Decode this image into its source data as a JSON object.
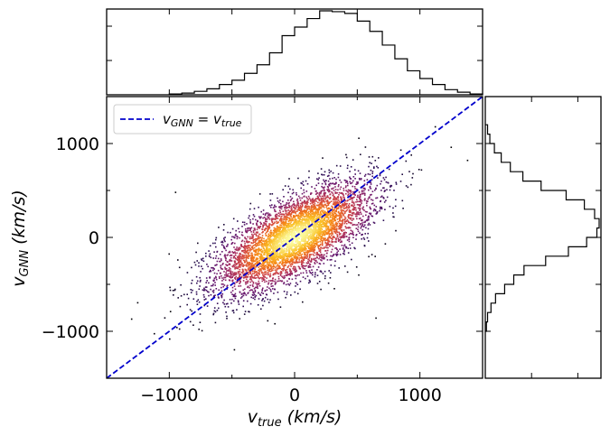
{
  "chart_data": {
    "type": "scatter",
    "x_range": [
      -1500,
      1500
    ],
    "y_range": [
      -1500,
      1500
    ],
    "x_ticks": [
      -1000,
      0,
      1000
    ],
    "y_ticks": [
      -1000,
      0,
      1000
    ],
    "x_tick_labels": [
      "−1000",
      "0",
      "1000"
    ],
    "y_tick_labels": [
      "−1000",
      "0",
      "1000"
    ],
    "xlabel": {
      "base": "v",
      "sub": "true",
      "unit": "(km/s)"
    },
    "ylabel": {
      "base": "v",
      "sub": "GNN",
      "unit": "(km/s)"
    },
    "legend": {
      "position": "upper-left",
      "entries": [
        {
          "label": {
            "lhs": "v",
            "lhs_sub": "GNN",
            "rhs": "v",
            "rhs_sub": "true"
          },
          "style": "dashed",
          "color": "#0000cc"
        }
      ]
    },
    "reference_line": {
      "slope": 1,
      "intercept": 0,
      "color": "#0000cc",
      "style": "dashed"
    },
    "scatter": {
      "n_points": 5200,
      "x_mean": 0,
      "x_std": 310,
      "y_mean": 0,
      "y_std": 290,
      "correlation": 0.68,
      "colormap": "inferno",
      "density_colored": true,
      "outliers": [
        [
          -1300,
          -870
        ],
        [
          1250,
          960
        ],
        [
          1380,
          820
        ],
        [
          650,
          -860
        ],
        [
          -990,
          -790
        ],
        [
          -950,
          480
        ],
        [
          900,
          900
        ]
      ]
    },
    "top_histogram": {
      "orientation": "vertical",
      "bin_width": 100,
      "bin_edges_start": -1000,
      "counts": [
        1,
        2,
        4,
        7,
        12,
        17,
        25,
        35,
        49,
        69,
        79,
        89,
        98,
        97,
        95,
        86,
        74,
        58,
        42,
        28,
        19,
        12,
        6,
        3,
        1
      ],
      "color": "#000000"
    },
    "right_histogram": {
      "orientation": "horizontal",
      "bin_width": 100,
      "bin_edges_start": -1000,
      "counts": [
        1,
        2,
        5,
        9,
        17,
        25,
        34,
        53,
        73,
        89,
        98,
        100,
        96,
        87,
        71,
        49,
        33,
        22,
        14,
        8,
        4,
        2
      ],
      "color": "#000000"
    }
  }
}
